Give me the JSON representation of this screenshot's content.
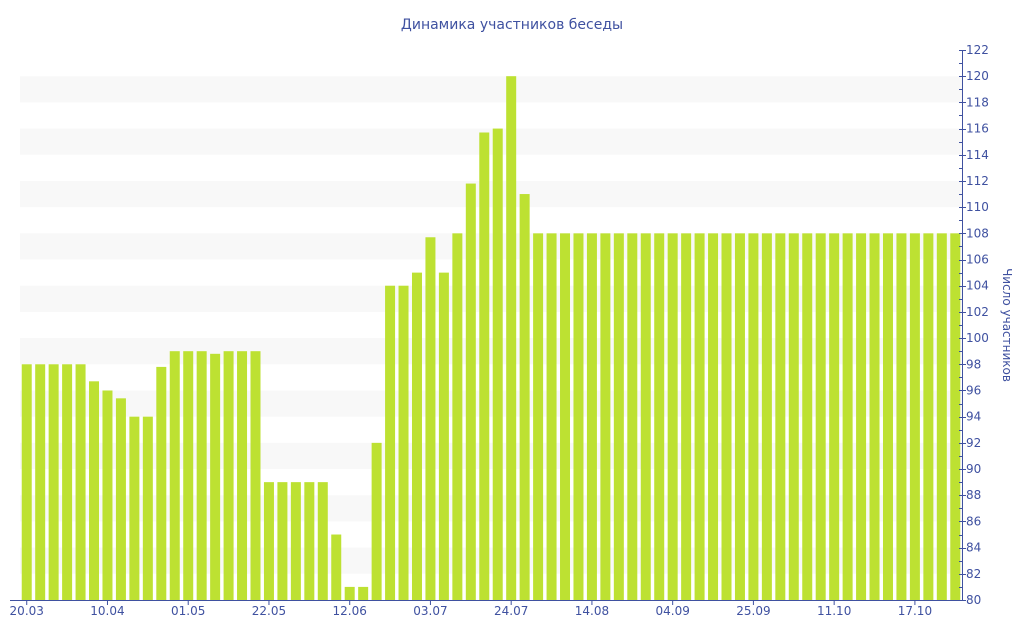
{
  "chart_data": {
    "type": "bar",
    "title": "Динамика участников беседы",
    "ylabel": "Число участников",
    "xlabel": "",
    "ylim": [
      80,
      122
    ],
    "y_ticks": [
      80,
      82,
      84,
      86,
      88,
      90,
      92,
      94,
      96,
      98,
      100,
      102,
      104,
      106,
      108,
      110,
      112,
      114,
      116,
      118,
      120,
      122
    ],
    "y_axis_position": "right",
    "grid": "alternating horizontal bands",
    "x_tick_labels": [
      "20.03",
      "10.04",
      "01.05",
      "22.05",
      "12.06",
      "03.07",
      "24.07",
      "14.08",
      "04.09",
      "25.09",
      "11.10",
      "17.10"
    ],
    "x_tick_every_n_bars": 6,
    "values": [
      98,
      98,
      98,
      98,
      98,
      96.7,
      96,
      95.4,
      94,
      94,
      97.8,
      99,
      99,
      99,
      98.8,
      99,
      99,
      99,
      89,
      89,
      89,
      89,
      89,
      85,
      81,
      81,
      92,
      104,
      104,
      105,
      107.7,
      105,
      108,
      111.8,
      115.7,
      116,
      120,
      111,
      108,
      108,
      108,
      108,
      108,
      108,
      108,
      108,
      108,
      108,
      108,
      108,
      108,
      108,
      108,
      108,
      108,
      108,
      108,
      108,
      108,
      108,
      108,
      108,
      108,
      108,
      108,
      108,
      108,
      108,
      108,
      108
    ],
    "colors": {
      "bar": "#bde132",
      "axis": "#3f51a0",
      "band": "#f8f8f8"
    }
  }
}
